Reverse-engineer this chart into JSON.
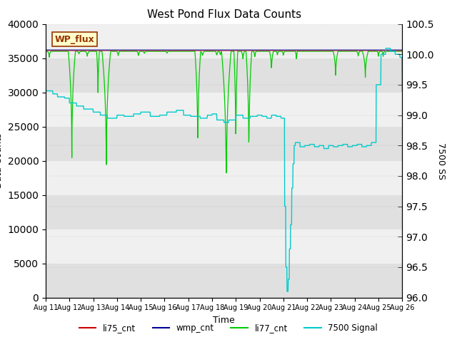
{
  "title": "West Pond Flux Data Counts",
  "xlabel": "Time",
  "ylabel_left": "Data Counts",
  "ylabel_right": "7500 SS",
  "ylim_left": [
    0,
    40000
  ],
  "ylim_right": [
    96.0,
    100.5
  ],
  "facecolor_plot": "#e8e8e8",
  "legend_labels": [
    "li75_cnt",
    "wmp_cnt",
    "li77_cnt",
    "7500 Signal"
  ],
  "legend_colors": [
    "#cc0000",
    "#000099",
    "#00cc00",
    "#00cccc"
  ],
  "watermark_text": "WP_flux",
  "watermark_facecolor": "#ffffcc",
  "watermark_edgecolor": "#993300",
  "watermark_textcolor": "#993300",
  "x_tick_labels": [
    "Aug 11",
    "Aug 12",
    "Aug 13",
    "Aug 14",
    "Aug 15",
    "Aug 16",
    "Aug 17",
    "Aug 18",
    "Aug 19",
    "Aug 20",
    "Aug 21",
    "Aug 22",
    "Aug 23",
    "Aug 24",
    "Aug 25",
    "Aug 26"
  ],
  "x_tick_positions": [
    0,
    1,
    2,
    3,
    4,
    5,
    6,
    7,
    8,
    9,
    10,
    11,
    12,
    13,
    14,
    15
  ],
  "yticks_left": [
    0,
    5000,
    10000,
    15000,
    20000,
    25000,
    30000,
    35000,
    40000
  ],
  "yticks_right": [
    96.0,
    96.5,
    97.0,
    97.5,
    98.0,
    98.5,
    99.0,
    99.5,
    100.0,
    100.5
  ],
  "band_colors": [
    "#e0e0e0",
    "#f0f0f0"
  ]
}
